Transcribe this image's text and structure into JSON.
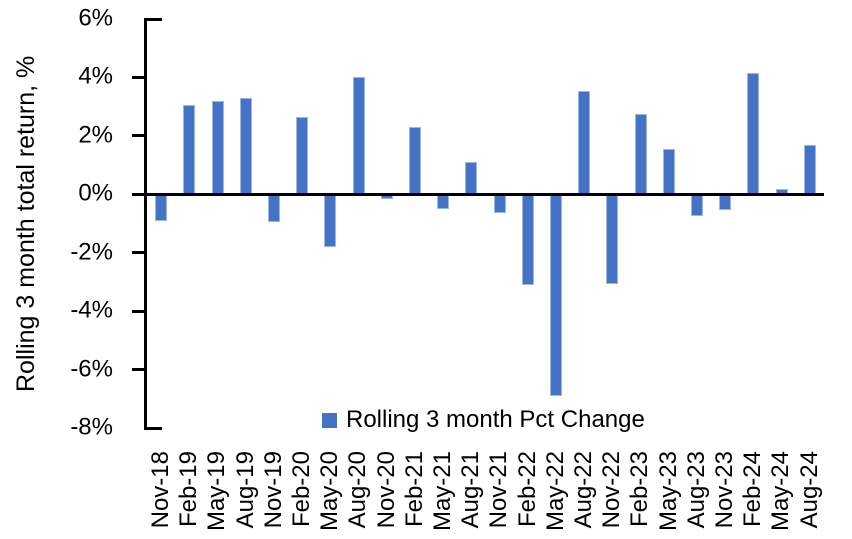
{
  "colors": {
    "bar": "#4472C4",
    "bar_border": "#9BB6E4",
    "axis": "#000000",
    "background": "#FFFFFF",
    "text": "#000000"
  },
  "chart_data": {
    "type": "bar",
    "title": "",
    "xlabel": "",
    "ylabel": "Rolling 3 month total return, %",
    "legend_label": "Rolling 3 month Pct Change",
    "legend_position": "bottom-center",
    "grid": false,
    "ylim": [
      -8,
      6
    ],
    "ytick_step": 2,
    "yticks": [
      6,
      4,
      2,
      0,
      -2,
      -4,
      -6,
      -8
    ],
    "ytick_labels": [
      "6%",
      "4%",
      "2%",
      "0%",
      "-2%",
      "-4%",
      "-6%",
      "-8%"
    ],
    "categories": [
      "Nov-18",
      "Feb-19",
      "May-19",
      "Aug-19",
      "Nov-19",
      "Feb-20",
      "May-20",
      "Aug-20",
      "Nov-20",
      "Feb-21",
      "May-21",
      "Aug-21",
      "Nov-21",
      "Feb-22",
      "May-22",
      "Aug-22",
      "Nov-22",
      "Feb-23",
      "May-23",
      "Aug-23",
      "Nov-23",
      "Feb-24",
      "May-24",
      "Aug-24"
    ],
    "series": [
      {
        "name": "Rolling 3 month Pct Change",
        "values": [
          -0.9,
          3.05,
          3.2,
          3.3,
          -0.95,
          2.65,
          -1.8,
          4.0,
          -0.15,
          2.3,
          -0.5,
          1.1,
          -0.65,
          -3.1,
          -6.9,
          3.55,
          -3.05,
          2.75,
          1.55,
          -0.75,
          -0.55,
          4.15,
          0.2,
          1.7
        ]
      }
    ]
  }
}
